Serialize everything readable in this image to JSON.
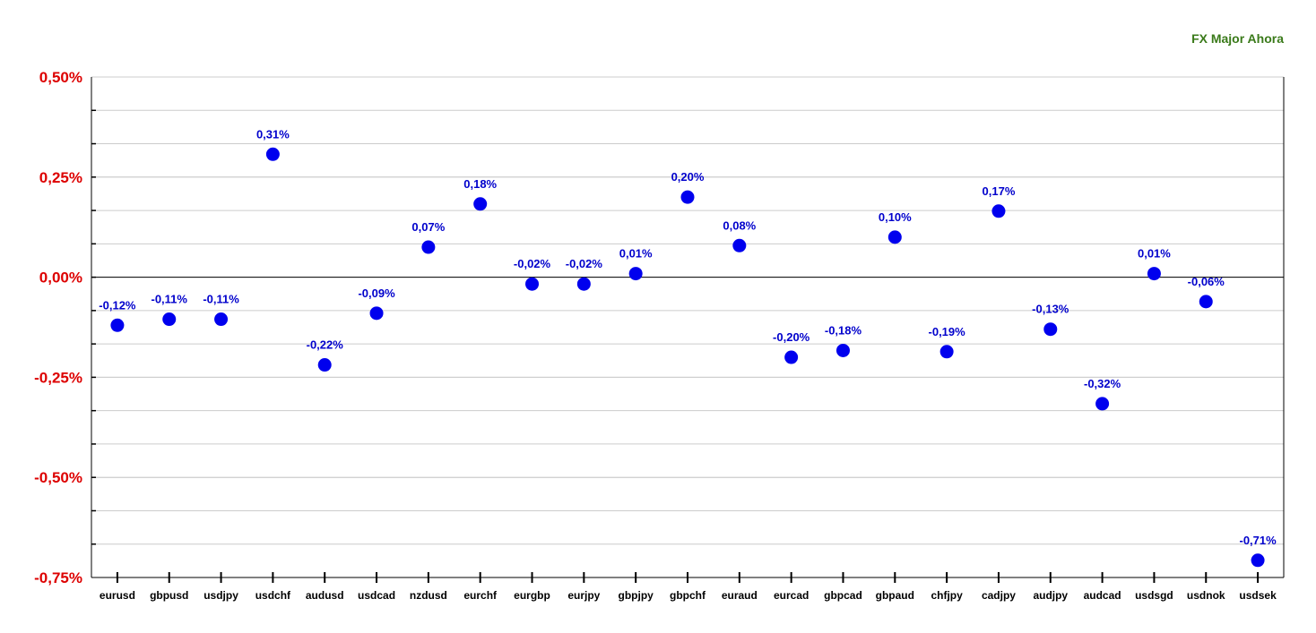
{
  "chart_data": {
    "type": "scatter",
    "title": "",
    "xlabel": "",
    "ylabel": "",
    "legend": {
      "label": "FX Major Ahora",
      "placement": "top-right"
    },
    "categories": [
      "eurusd",
      "gbpusd",
      "usdjpy",
      "usdchf",
      "audusd",
      "usdcad",
      "nzdusd",
      "eurchf",
      "eurgbp",
      "eurjpy",
      "gbpjpy",
      "gbpchf",
      "euraud",
      "eurcad",
      "gbpcad",
      "gbpaud",
      "chfjpy",
      "cadjpy",
      "audjpy",
      "audcad",
      "usdsgd",
      "usdnok",
      "usdsek"
    ],
    "series": [
      {
        "name": "FX Major Ahora",
        "values": [
          -0.12,
          -0.105,
          -0.105,
          0.307,
          -0.219,
          -0.09,
          0.075,
          0.183,
          -0.017,
          -0.017,
          0.009,
          0.2,
          0.079,
          -0.2,
          -0.183,
          0.1,
          -0.186,
          0.165,
          -0.13,
          -0.316,
          0.009,
          -0.061,
          -0.707
        ],
        "labels": [
          "-0,12%",
          "-0,11%",
          "-0,11%",
          "0,31%",
          "-0,22%",
          "-0,09%",
          "0,07%",
          "0,18%",
          "-0,02%",
          "-0,02%",
          "0,01%",
          "0,20%",
          "0,08%",
          "-0,20%",
          "-0,18%",
          "0,10%",
          "-0,19%",
          "0,17%",
          "-0,13%",
          "-0,32%",
          "0,01%",
          "-0,06%",
          "-0,71%"
        ]
      }
    ],
    "ylim": [
      -0.75,
      0.5
    ],
    "yticks": [
      0.5,
      0.25,
      0,
      -0.25,
      -0.5,
      -0.75
    ],
    "ytick_labels": [
      "0,50%",
      "0,25%",
      "0,00%",
      "-0,25%",
      "-0,50%",
      "-0,75%"
    ],
    "minor_step": 0.0833,
    "grid": true,
    "colors": {
      "marker": "#0000ee",
      "data_label": "#0000cc",
      "ytick": "#dd0000",
      "legend": "#3a7a1a",
      "grid": "#cccccc",
      "axis": "#000000"
    }
  }
}
